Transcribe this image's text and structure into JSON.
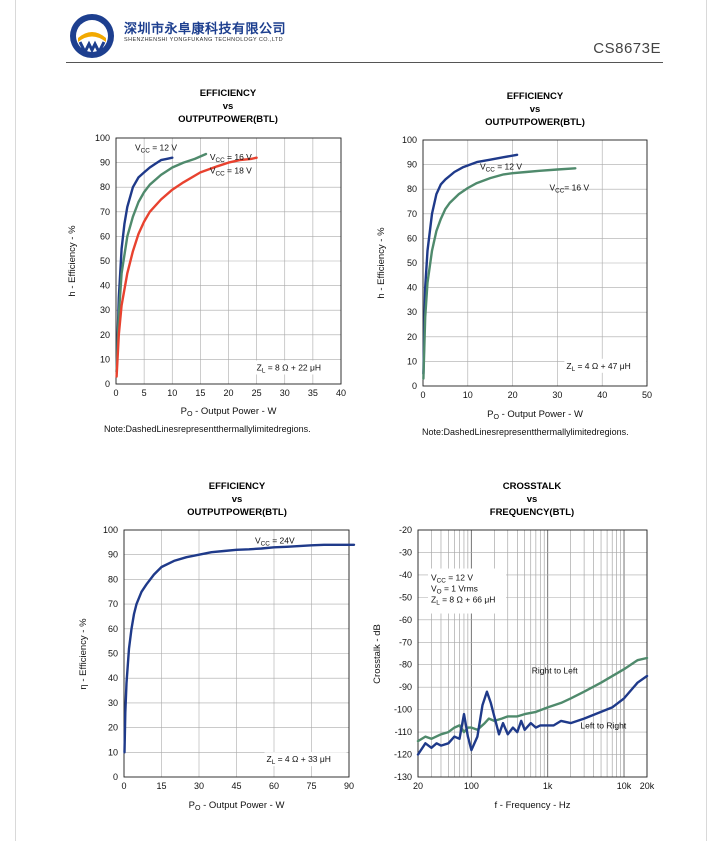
{
  "header": {
    "company_cn": "深圳市永阜康科技有限公司",
    "company_en": "SHENZHENSHI YONGFUKANG TECHNOLOGY CO.,LTD",
    "model": "CS8673E",
    "brand_colors": {
      "primary": "#1d3f8f",
      "accent": "#f2a900"
    }
  },
  "colors": {
    "navy": "#1f3a8a",
    "green": "#4f8a6c",
    "red": "#e8422f"
  },
  "chart_data": [
    {
      "id": "c1",
      "type": "line",
      "title": [
        "EFFICIENCY",
        "vs",
        "OUTPUTPOWER(BTL)"
      ],
      "xlabel": "PO - Output Power - W",
      "ylabel": "h - Efficiency - %",
      "xlim": [
        0,
        40
      ],
      "ylim": [
        0,
        100
      ],
      "xticks": [
        0,
        5,
        10,
        15,
        20,
        25,
        30,
        35,
        40
      ],
      "yticks": [
        0,
        10,
        20,
        30,
        40,
        50,
        60,
        70,
        80,
        90,
        100
      ],
      "grid": true,
      "series": [
        {
          "name": "VCC = 12 V",
          "color": "#1f3a8a",
          "x": [
            0.1,
            0.5,
            1,
            1.5,
            2,
            3,
            4,
            5,
            6,
            7,
            8,
            9,
            10
          ],
          "y": [
            5,
            35,
            55,
            65,
            72,
            80,
            84,
            86,
            88,
            89.5,
            91,
            91.5,
            92
          ]
        },
        {
          "name": "VCC = 16 V",
          "color": "#4f8a6c",
          "x": [
            0.1,
            0.5,
            1,
            2,
            3,
            4,
            5,
            6,
            8,
            10,
            12,
            14,
            16
          ],
          "y": [
            5,
            28,
            45,
            60,
            68,
            74,
            78,
            81,
            85,
            88,
            90,
            91.5,
            93.5
          ]
        },
        {
          "name": "VCC = 18 V",
          "color": "#e8422f",
          "x": [
            0.1,
            0.5,
            1,
            2,
            3,
            4,
            5,
            6,
            8,
            10,
            12,
            15,
            18,
            20,
            22,
            24,
            25
          ],
          "y": [
            3,
            20,
            32,
            45,
            54,
            61,
            66,
            70,
            75,
            79,
            82,
            86,
            88.5,
            90,
            91,
            91.5,
            92
          ]
        }
      ],
      "labels": [
        {
          "text": "VCC = 12 V",
          "x": 3.2,
          "y": 95
        },
        {
          "text": "VCC = 16 V",
          "x": 16.5,
          "y": 91
        },
        {
          "text": "VCC = 18 V",
          "x": 16.5,
          "y": 85.5
        }
      ],
      "annotation": {
        "text": "ZL = 8 Ω + 22 μH",
        "x": 25,
        "y": 5.5
      },
      "note": "Note:DashedLinesrepresentthermallylimitedregions."
    },
    {
      "id": "c2",
      "type": "line",
      "title": [
        "EFFICIENCY",
        "vs",
        "OUTPUTPOWER(BTL)"
      ],
      "xlabel": "PO - Output Power - W",
      "ylabel": "h - Efficiency - %",
      "xlim": [
        0,
        50
      ],
      "ylim": [
        0,
        100
      ],
      "xticks": [
        0,
        10,
        20,
        30,
        40,
        50
      ],
      "yticks": [
        0,
        10,
        20,
        30,
        40,
        50,
        60,
        70,
        80,
        90,
        100
      ],
      "grid": true,
      "series": [
        {
          "name": "VCC = 12 V",
          "color": "#1f3a8a",
          "x": [
            0.1,
            0.5,
            1,
            2,
            3,
            4,
            5,
            7,
            9,
            12,
            15,
            18,
            21
          ],
          "y": [
            5,
            40,
            55,
            70,
            78,
            82,
            84,
            87,
            89,
            91,
            92,
            93,
            94
          ]
        },
        {
          "name": "VCC= 16 V",
          "color": "#4f8a6c",
          "x": [
            0.1,
            0.5,
            1,
            2,
            3,
            4,
            5,
            6,
            8,
            10,
            12,
            15,
            18,
            20,
            23,
            26,
            30,
            34
          ],
          "y": [
            3,
            28,
            42,
            55,
            63,
            68,
            72,
            74.5,
            78,
            80.5,
            82.5,
            84.5,
            86,
            86.5,
            87,
            87.5,
            88,
            88.5
          ]
        }
      ],
      "labels": [
        {
          "text": "VCC = 12 V",
          "x": 12.5,
          "y": 88
        },
        {
          "text": "VCC= 16 V",
          "x": 28,
          "y": 79.5
        }
      ],
      "annotation": {
        "text": "ZL = 4 Ω + 47 μH",
        "x": 32,
        "y": 7
      },
      "note": "Note:DashedLinesrepresentthermallylimitedregions."
    },
    {
      "id": "c3",
      "type": "line",
      "title": [
        "EFFICIENCY",
        "vs",
        "OUTPUTPOWER(BTL)"
      ],
      "xlabel": "PO - Output Power - W",
      "ylabel": "η - Efficiency - %",
      "xlim": [
        0,
        90
      ],
      "ylim": [
        0,
        100
      ],
      "xticks": [
        0,
        15,
        30,
        45,
        60,
        75,
        90
      ],
      "yticks": [
        0,
        10,
        20,
        30,
        40,
        50,
        60,
        70,
        80,
        90,
        100
      ],
      "grid": true,
      "series": [
        {
          "name": "VCC = 24V",
          "color": "#1f3a8a",
          "x": [
            0.2,
            0.5,
            1,
            2,
            3,
            4,
            5,
            7,
            9,
            12,
            15,
            20,
            25,
            30,
            35,
            40,
            45,
            50,
            55,
            60,
            65,
            70,
            75,
            80,
            85,
            92
          ],
          "y": [
            10,
            26,
            38,
            52,
            60,
            66,
            70,
            75,
            78,
            82,
            85,
            87.5,
            89,
            90,
            91,
            91.5,
            92,
            92.2,
            92.5,
            93,
            93.2,
            93.5,
            93.8,
            94,
            94,
            94
          ]
        }
      ],
      "labels": [
        {
          "text": "VCC = 24V",
          "x": 52,
          "y": 94.5
        }
      ],
      "annotation": {
        "text": "ZL = 4 Ω + 33 μH",
        "x": 57,
        "y": 6
      },
      "note": ""
    },
    {
      "id": "c4",
      "type": "line",
      "title": [
        "CROSSTALK",
        "vs",
        "FREQUENCY(BTL)"
      ],
      "xlabel": "f - Frequency - Hz",
      "ylabel": "Crosstalk - dB",
      "xscale": "log",
      "xlim": [
        20,
        20000
      ],
      "ylim": [
        -130,
        -20
      ],
      "xticks": [
        20,
        100,
        1000,
        10000,
        20000
      ],
      "xticklabels": [
        "20",
        "100",
        "1k",
        "10k",
        "20k"
      ],
      "yticks": [
        -20,
        -30,
        -40,
        -50,
        -60,
        -70,
        -80,
        -90,
        -100,
        -110,
        -120,
        -130
      ],
      "grid": true,
      "series": [
        {
          "name": "Right to Left",
          "color": "#4f8a6c",
          "x": [
            20,
            25,
            30,
            40,
            50,
            60,
            70,
            80,
            90,
            100,
            120,
            150,
            170,
            200,
            250,
            300,
            400,
            500,
            700,
            1000,
            1500,
            2000,
            3000,
            5000,
            10000,
            15000,
            20000
          ],
          "y": [
            -114,
            -112,
            -113,
            -111,
            -110,
            -108,
            -107,
            -110,
            -108,
            -108,
            -109,
            -106,
            -104,
            -105,
            -104,
            -103,
            -103,
            -102,
            -101,
            -99,
            -97,
            -95,
            -92,
            -88,
            -82,
            -78,
            -77
          ]
        },
        {
          "name": "Left to Right",
          "color": "#1f3a8a",
          "x": [
            20,
            25,
            30,
            35,
            40,
            50,
            60,
            70,
            80,
            90,
            100,
            120,
            140,
            160,
            180,
            200,
            230,
            260,
            300,
            350,
            400,
            450,
            500,
            600,
            700,
            800,
            1000,
            1200,
            1500,
            2000,
            3000,
            5000,
            7000,
            10000,
            15000,
            20000
          ],
          "y": [
            -120,
            -115,
            -117,
            -115,
            -116,
            -115,
            -112,
            -113,
            -102,
            -112,
            -118,
            -112,
            -98,
            -92,
            -97,
            -103,
            -111,
            -106,
            -111,
            -108,
            -110,
            -105,
            -109,
            -106,
            -108,
            -107,
            -107,
            -107,
            -105,
            -106,
            -104,
            -101,
            -99,
            -95,
            -88,
            -85
          ]
        }
      ],
      "labels": [
        {
          "text": "Right to Left",
          "x": 600,
          "y": -84
        },
        {
          "text": "Left to Right",
          "x": 2600,
          "y": -108.5
        }
      ],
      "conditions": [
        "VCC = 12 V",
        "VO = 1 Vrms",
        "ZL = 8 Ω + 66 μH"
      ],
      "note": ""
    }
  ]
}
